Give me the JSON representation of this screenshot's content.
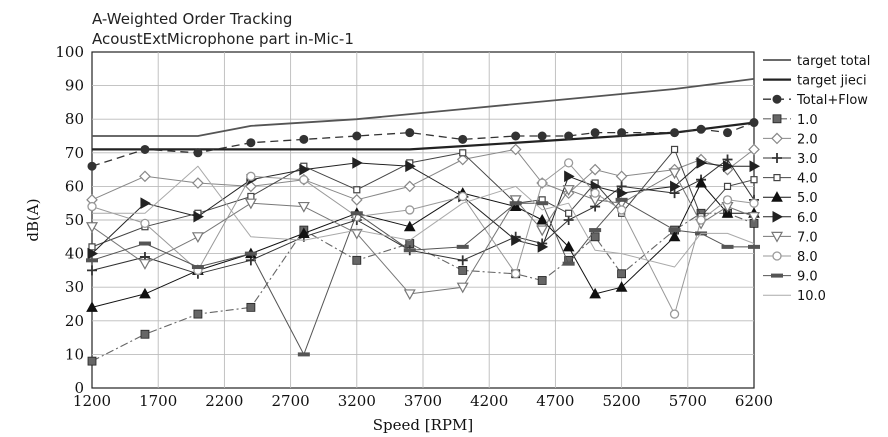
{
  "chart_data": {
    "type": "line",
    "title": "A-Weighted Order Tracking",
    "subtitle": "AcoustExtMicrophone part in-Mic-1",
    "xlabel": "Speed [RPM]",
    "ylabel": "dB(A)",
    "xlim": [
      1200,
      6200
    ],
    "ylim": [
      0,
      100
    ],
    "grid": true,
    "legend_position": "right",
    "x_ticks": [
      "1200",
      "1700",
      "2200",
      "2700",
      "3200",
      "3700",
      "4200",
      "4700",
      "5200",
      "5700",
      "6200"
    ],
    "y_ticks": [
      "0",
      "10",
      "20",
      "30",
      "40",
      "50",
      "60",
      "70",
      "80",
      "90",
      "100"
    ],
    "series": [
      {
        "name": "target total",
        "color": "#555555",
        "style": "solid",
        "width": 1.8,
        "marker": "none",
        "x": [
          1200,
          2000,
          2400,
          3200,
          4000,
          4800,
          5600,
          6200
        ],
        "y": [
          75,
          75,
          78,
          80,
          83,
          86,
          89,
          92
        ]
      },
      {
        "name": "target jieci",
        "color": "#222222",
        "style": "solid",
        "width": 2.2,
        "marker": "none",
        "x": [
          1200,
          3600,
          4000,
          4800,
          5600,
          6200
        ],
        "y": [
          71,
          71,
          72,
          74,
          76,
          79
        ]
      },
      {
        "name": "Total+Flow",
        "color": "#333333",
        "style": "dashed",
        "width": 1.3,
        "marker": "circle",
        "x": [
          1200,
          1600,
          2000,
          2400,
          2800,
          3200,
          3600,
          4000,
          4400,
          4600,
          4800,
          5000,
          5200,
          5600,
          5800,
          6000,
          6200
        ],
        "y": [
          66,
          71,
          70,
          73,
          74,
          75,
          76,
          74,
          75,
          75,
          75,
          76,
          76,
          76,
          77,
          76,
          79
        ]
      },
      {
        "name": "1.0",
        "color": "#666666",
        "style": "dashdot",
        "width": 1.1,
        "marker": "filled-square",
        "x": [
          1200,
          1600,
          2000,
          2400,
          2800,
          3200,
          3600,
          4000,
          4400,
          4600,
          4800,
          5000,
          5200,
          5600,
          5800,
          6000,
          6200
        ],
        "y": [
          8,
          16,
          22,
          24,
          47,
          38,
          43,
          35,
          34,
          32,
          38,
          45,
          34,
          47,
          52,
          52,
          49
        ]
      },
      {
        "name": "2.0",
        "color": "#888888",
        "style": "solid",
        "width": 1.0,
        "marker": "diamond",
        "x": [
          1200,
          1600,
          2000,
          2400,
          2800,
          3200,
          3600,
          4000,
          4400,
          4600,
          4800,
          5000,
          5200,
          5600,
          5800,
          6000,
          6200
        ],
        "y": [
          56,
          63,
          61,
          60,
          62,
          56,
          60,
          68,
          71,
          61,
          58,
          65,
          63,
          65,
          68,
          65,
          71
        ]
      },
      {
        "name": "3.0",
        "color": "#333333",
        "style": "solid",
        "width": 1.0,
        "marker": "plus",
        "x": [
          1200,
          1600,
          2000,
          2400,
          2800,
          3200,
          3600,
          4000,
          4400,
          4600,
          4800,
          5000,
          5200,
          5600,
          5800,
          6000,
          6200
        ],
        "y": [
          35,
          39,
          34,
          38,
          45,
          50,
          41,
          38,
          45,
          43,
          50,
          54,
          60,
          58,
          62,
          68,
          56
        ]
      },
      {
        "name": "4.0",
        "color": "#444444",
        "style": "solid",
        "width": 1.0,
        "marker": "small-square",
        "x": [
          1200,
          1600,
          2000,
          2400,
          2800,
          3200,
          3600,
          4000,
          4400,
          4600,
          4800,
          5000,
          5200,
          5600,
          5800,
          6000,
          6200
        ],
        "y": [
          42,
          48,
          52,
          57,
          66,
          59,
          67,
          70,
          55,
          56,
          52,
          61,
          52,
          71,
          51,
          60,
          62
        ]
      },
      {
        "name": "5.0",
        "color": "#111111",
        "style": "solid",
        "width": 1.0,
        "marker": "triangle-up",
        "x": [
          1200,
          1600,
          2000,
          2400,
          2800,
          3200,
          3600,
          4000,
          4400,
          4600,
          4800,
          5000,
          5200,
          5600,
          5800,
          6000,
          6200
        ],
        "y": [
          24,
          28,
          35,
          40,
          46,
          52,
          48,
          58,
          54,
          50,
          42,
          28,
          30,
          45,
          61,
          52,
          52
        ]
      },
      {
        "name": "6.0",
        "color": "#222222",
        "style": "solid",
        "width": 1.0,
        "marker": "triangle-right",
        "x": [
          1200,
          1600,
          2000,
          2400,
          2800,
          3200,
          3600,
          4000,
          4400,
          4600,
          4800,
          5000,
          5200,
          5600,
          5800,
          6000,
          6200
        ],
        "y": [
          40,
          55,
          51,
          62,
          65,
          67,
          66,
          57,
          44,
          42,
          63,
          60,
          58,
          60,
          67,
          66,
          66
        ]
      },
      {
        "name": "7.0",
        "color": "#777777",
        "style": "solid",
        "width": 1.0,
        "marker": "triangle-down",
        "x": [
          1200,
          1600,
          2000,
          2400,
          2800,
          3200,
          3600,
          4000,
          4400,
          4600,
          4800,
          5000,
          5200,
          5600,
          5800,
          6000,
          6200
        ],
        "y": [
          48,
          37,
          45,
          55,
          54,
          46,
          28,
          30,
          56,
          47,
          59,
          56,
          55,
          64,
          49,
          54,
          51
        ]
      },
      {
        "name": "8.0",
        "color": "#999999",
        "style": "solid",
        "width": 1.0,
        "marker": "open-circle",
        "x": [
          1200,
          1600,
          2000,
          2400,
          2800,
          3200,
          3600,
          4000,
          4400,
          4600,
          4800,
          5000,
          5200,
          5600,
          5800,
          6000,
          6200
        ],
        "y": [
          54,
          49,
          35,
          63,
          62,
          51,
          53,
          57,
          34,
          61,
          67,
          58,
          53,
          22,
          50,
          56,
          55
        ]
      },
      {
        "name": "9.0",
        "color": "#555555",
        "style": "solid",
        "width": 1.0,
        "marker": "dash",
        "x": [
          1200,
          1600,
          2000,
          2400,
          2800,
          3200,
          3600,
          4000,
          4400,
          4600,
          4800,
          5000,
          5200,
          5600,
          5800,
          6000,
          6200
        ],
        "y": [
          38,
          43,
          36,
          40,
          10,
          52,
          41,
          42,
          55,
          55,
          37,
          47,
          56,
          47,
          46,
          42,
          42
        ]
      },
      {
        "name": "10.0",
        "color": "#aaaaaa",
        "style": "solid",
        "width": 1.0,
        "marker": "none",
        "x": [
          1200,
          1600,
          2000,
          2400,
          2800,
          3200,
          3600,
          4000,
          4400,
          4600,
          4800,
          5000,
          5200,
          5600,
          5800,
          6000,
          6200
        ],
        "y": [
          52,
          52,
          66,
          45,
          44,
          47,
          44,
          55,
          60,
          53,
          55,
          41,
          40,
          36,
          46,
          46,
          43
        ]
      }
    ]
  }
}
